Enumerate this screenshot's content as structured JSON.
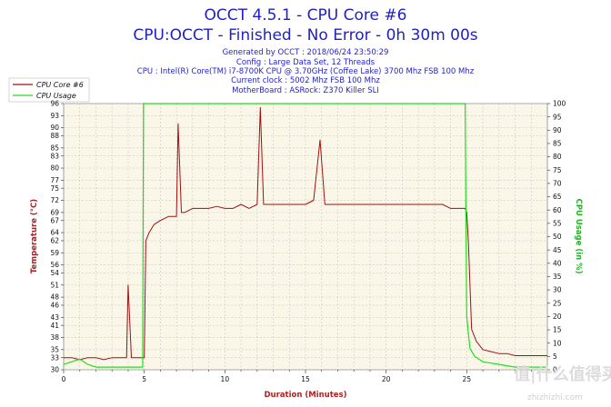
{
  "chart_data": {
    "type": "line",
    "title": "OCCT 4.5.1 - CPU Core #6",
    "subtitle": "CPU:OCCT - Finished - No Error - 0h 30m 00s",
    "info_lines": [
      "Generated by OCCT : 2018/06/24 23:50:29",
      "Config : Large Data Set, 12 Threads",
      "CPU : Intel(R) Core(TM) i7-8700K CPU @ 3.70GHz (Coffee Lake) 3700 Mhz FSB 100 Mhz",
      "Current clock : 5002 Mhz FSB 100 Mhz",
      "MotherBoard : ASRock: Z370 Killer SLI"
    ],
    "xlabel": "Duration (Minutes)",
    "ylabel": "Temperature (°C)",
    "y2label": "CPU Usage (in %)",
    "xlim": [
      0,
      30
    ],
    "ylim": [
      30,
      96
    ],
    "y2lim": [
      0,
      100
    ],
    "x_ticks": [
      "0",
      "5",
      "10",
      "15",
      "20",
      "25"
    ],
    "y_ticks": [
      "30",
      "33",
      "35",
      "38",
      "41",
      "43",
      "46",
      "48",
      "51",
      "54",
      "56",
      "59",
      "62",
      "64",
      "67",
      "69",
      "72",
      "75",
      "77",
      "80",
      "83",
      "85",
      "88",
      "90",
      "93",
      "96"
    ],
    "y2_ticks": [
      "0",
      "5",
      "10",
      "15",
      "20",
      "25",
      "30",
      "35",
      "40",
      "45",
      "50",
      "55",
      "60",
      "65",
      "70",
      "75",
      "80",
      "85",
      "90",
      "95",
      "100"
    ],
    "grid": true,
    "legend_position": "top-left",
    "series": [
      {
        "name": "CPU Core #6",
        "axis": "left",
        "color": "#a01010",
        "x": [
          0,
          0.5,
          1,
          1.5,
          2,
          2.5,
          3,
          3.5,
          3.9,
          4.0,
          4.2,
          4.5,
          4.9,
          5.0,
          5.1,
          5.3,
          5.6,
          6,
          6.5,
          7,
          7.1,
          7.3,
          7.5,
          8,
          8.5,
          9,
          9.5,
          10,
          10.5,
          11,
          11.5,
          12,
          12.2,
          12.4,
          13,
          13.5,
          14,
          14.5,
          15,
          15.5,
          15.9,
          16.2,
          17,
          17.5,
          18,
          18.5,
          19,
          19.5,
          20,
          20.5,
          21,
          21.5,
          22,
          22.5,
          23,
          23.5,
          24,
          24.5,
          24.9,
          25.0,
          25.1,
          25.3,
          25.6,
          26,
          26.5,
          27,
          27.5,
          28,
          28.5,
          29,
          29.5,
          30
        ],
        "values": [
          33,
          33,
          32.5,
          33,
          33,
          32.5,
          33,
          33,
          33,
          51,
          33,
          33,
          33,
          33,
          62,
          64,
          66,
          67,
          68,
          68,
          91,
          69,
          69,
          70,
          70,
          70,
          70.5,
          70,
          70,
          71,
          70,
          71,
          95,
          71,
          71,
          71,
          71,
          71,
          71,
          72,
          87,
          71,
          71,
          71,
          71,
          71,
          71,
          71,
          71,
          71,
          71,
          71,
          71,
          71,
          71,
          71,
          70,
          70,
          70,
          69,
          62,
          40,
          37,
          35,
          34.5,
          34,
          34,
          33.5,
          33.5,
          33.5,
          33.5,
          33.5
        ]
      },
      {
        "name": "CPU Usage",
        "axis": "right",
        "color": "#22dd22",
        "x": [
          0,
          0.5,
          1,
          1.5,
          2,
          3,
          4,
          4.9,
          4.95,
          5.0,
          10,
          15,
          20,
          24.9,
          24.95,
          25.0,
          25.2,
          25.5,
          26,
          27,
          28,
          29,
          30
        ],
        "values": [
          2,
          3,
          4,
          2,
          1,
          1,
          1,
          1,
          100,
          100,
          100,
          100,
          100,
          100,
          60,
          20,
          8,
          5,
          3,
          2,
          1,
          1,
          1
        ]
      }
    ]
  },
  "watermark": {
    "logo": "值|什么值得买",
    "site": "zhizhizhi.com"
  }
}
